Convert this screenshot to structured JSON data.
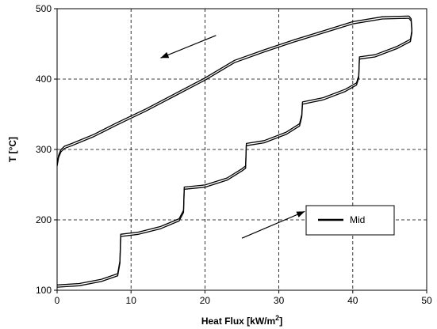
{
  "chart_data": {
    "type": "line",
    "xlabel": "Heat Flux [kW/m",
    "xlabel_sup": "2",
    "xlabel_end": "]",
    "ylabel": "T [°C]",
    "xlim": [
      0,
      50
    ],
    "ylim": [
      100,
      500
    ],
    "x_ticks": [
      0,
      10,
      20,
      30,
      40,
      50
    ],
    "y_ticks": [
      100,
      200,
      300,
      400,
      500
    ],
    "x_tick_labels": [
      "0",
      "10",
      "20",
      "30",
      "40",
      "50"
    ],
    "y_tick_labels": [
      "100",
      "200",
      "300",
      "400",
      "500"
    ],
    "grid": true,
    "legend_position": "lower-right",
    "series": [
      {
        "name": "Mid",
        "color": "#000000",
        "heating_curve": [
          [
            0,
            106
          ],
          [
            3,
            108
          ],
          [
            6,
            114
          ],
          [
            8.2,
            122
          ],
          [
            8.5,
            140
          ],
          [
            8.6,
            178
          ],
          [
            11,
            181
          ],
          [
            14,
            189
          ],
          [
            16.5,
            200
          ],
          [
            17.1,
            212
          ],
          [
            17.2,
            245
          ],
          [
            20,
            248
          ],
          [
            23,
            258
          ],
          [
            25,
            271
          ],
          [
            25.5,
            275
          ],
          [
            25.6,
            307
          ],
          [
            28,
            311
          ],
          [
            31,
            323
          ],
          [
            32.8,
            335
          ],
          [
            33.1,
            348
          ],
          [
            33.2,
            366
          ],
          [
            36,
            372
          ],
          [
            39,
            384
          ],
          [
            40.5,
            393
          ],
          [
            40.8,
            403
          ],
          [
            40.9,
            430
          ],
          [
            43,
            433
          ],
          [
            46,
            445
          ],
          [
            47.8,
            455
          ],
          [
            48,
            468
          ],
          [
            47.9,
            484
          ],
          [
            47.6,
            488
          ]
        ],
        "cooling_curve": [
          [
            47.6,
            488
          ],
          [
            44,
            487
          ],
          [
            40,
            480
          ],
          [
            36,
            467
          ],
          [
            32,
            454
          ],
          [
            28,
            440
          ],
          [
            24,
            425
          ],
          [
            20,
            400
          ],
          [
            16,
            378
          ],
          [
            12,
            356
          ],
          [
            8,
            336
          ],
          [
            5,
            320
          ],
          [
            2,
            307
          ],
          [
            1,
            303
          ],
          [
            0.5,
            298
          ],
          [
            0.2,
            290
          ],
          [
            0,
            278
          ]
        ]
      }
    ],
    "annotations": [
      {
        "type": "arrow",
        "meaning": "cooling direction",
        "from": [
          21.5,
          462
        ],
        "to": [
          14,
          430
        ]
      },
      {
        "type": "arrow",
        "meaning": "heating direction",
        "from": [
          25,
          174
        ],
        "to": [
          33.5,
          212
        ]
      }
    ]
  }
}
